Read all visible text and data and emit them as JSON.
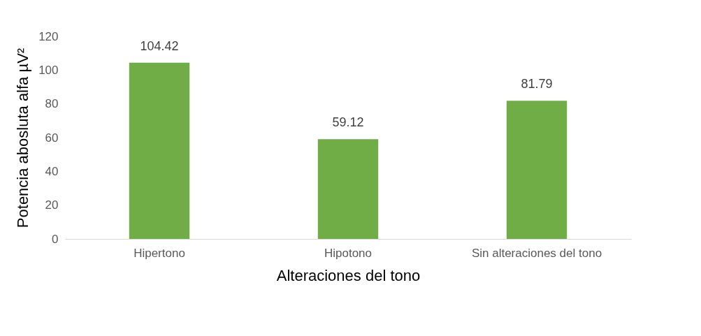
{
  "chart_data": {
    "type": "bar",
    "categories": [
      "Hipertono",
      "Hipotono",
      "Sin alteraciones del tono"
    ],
    "values": [
      104.42,
      59.12,
      81.79
    ],
    "color": "#70ad47",
    "xlabel": "Alteraciones del tono",
    "ylabel": "Potencia abosluta alfa µV²",
    "ylim": [
      0,
      120
    ],
    "yticks": [
      0,
      20,
      40,
      60,
      80,
      100,
      120
    ],
    "data_labels": true,
    "grid": false
  }
}
